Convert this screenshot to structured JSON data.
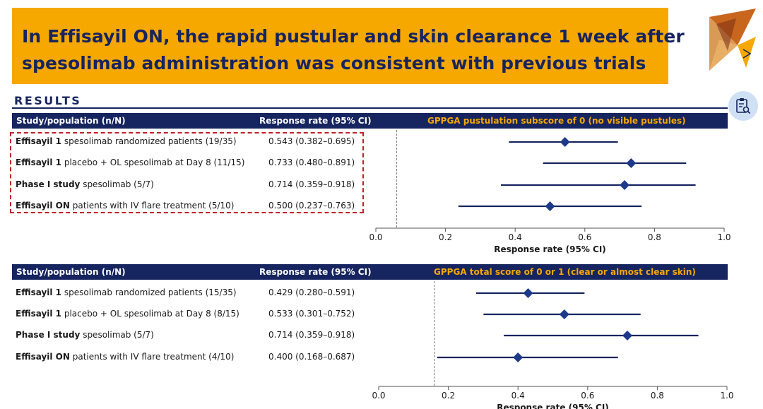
{
  "title": {
    "line1": "In Effisayil ON, the rapid pustular and skin clearance 1 week after",
    "line2": "spesolimab administration was consistent with previous trials"
  },
  "results_label": "RESULTS",
  "colors": {
    "navy": "#16245f",
    "orange": "#f6a800",
    "marker": "#1d3a8a",
    "highlight": "#c0202a"
  },
  "icons": {
    "logo": "triangle-logo-icon",
    "button": "clipboard-search-icon"
  },
  "chart_data": [
    {
      "type": "forest",
      "header": {
        "study": "Study/population (n/N)",
        "rate": "Response rate (95% CI)",
        "subtitle": "GPPGA pustulation subscore of 0 (no visible pustules)"
      },
      "xlabel": "Response rate (95% CI)",
      "xlim": [
        0.0,
        1.0
      ],
      "xticks": [
        "0.0",
        "0.2",
        "0.4",
        "0.6",
        "0.8",
        "1.0"
      ],
      "reference_line": 0.06,
      "highlighted": true,
      "rows": [
        {
          "bold": "Effisayil 1",
          "rest": " spesolimab randomized patients (19/35)",
          "rate_text": "0.543 (0.382–0.695)",
          "estimate": 0.543,
          "lower": 0.382,
          "upper": 0.695
        },
        {
          "bold": "Effisayil 1",
          "rest": " placebo + OL spesolimab at Day 8 (11/15)",
          "rate_text": "0.733 (0.480–0.891)",
          "estimate": 0.733,
          "lower": 0.48,
          "upper": 0.891
        },
        {
          "bold": "Phase I study",
          "rest": " spesolimab (5/7)",
          "rate_text": "0.714 (0.359–0.918)",
          "estimate": 0.714,
          "lower": 0.359,
          "upper": 0.918
        },
        {
          "bold": "Effisayil ON",
          "rest": " patients with IV flare treatment (5/10)",
          "rate_text": "0.500 (0.237–0.763)",
          "estimate": 0.5,
          "lower": 0.237,
          "upper": 0.763
        }
      ]
    },
    {
      "type": "forest",
      "header": {
        "study": "Study/population (n/N)",
        "rate": "Response rate (95% CI)",
        "subtitle": "GPPGA total score of 0 or 1 (clear or almost clear skin)"
      },
      "xlabel": "Response rate (95% CI)",
      "xlim": [
        0.0,
        1.0
      ],
      "xticks": [
        "0.0",
        "0.2",
        "0.4",
        "0.6",
        "0.8",
        "1.0"
      ],
      "reference_line": 0.16,
      "highlighted": false,
      "rows": [
        {
          "bold": "Effisayil 1",
          "rest": " spesolimab randomized patients (15/35)",
          "rate_text": "0.429 (0.280–0.591)",
          "estimate": 0.429,
          "lower": 0.28,
          "upper": 0.591
        },
        {
          "bold": "Effisayil 1",
          "rest": " placebo + OL spesolimab at Day 8 (8/15)",
          "rate_text": "0.533 (0.301–0.752)",
          "estimate": 0.533,
          "lower": 0.301,
          "upper": 0.752
        },
        {
          "bold": "Phase I study",
          "rest": " spesolimab (5/7)",
          "rate_text": "0.714 (0.359–0.918)",
          "estimate": 0.714,
          "lower": 0.359,
          "upper": 0.918
        },
        {
          "bold": "Effisayil ON",
          "rest": " patients with IV flare treatment (4/10)",
          "rate_text": "0.400 (0.168–0.687)",
          "estimate": 0.4,
          "lower": 0.168,
          "upper": 0.687
        }
      ]
    }
  ]
}
